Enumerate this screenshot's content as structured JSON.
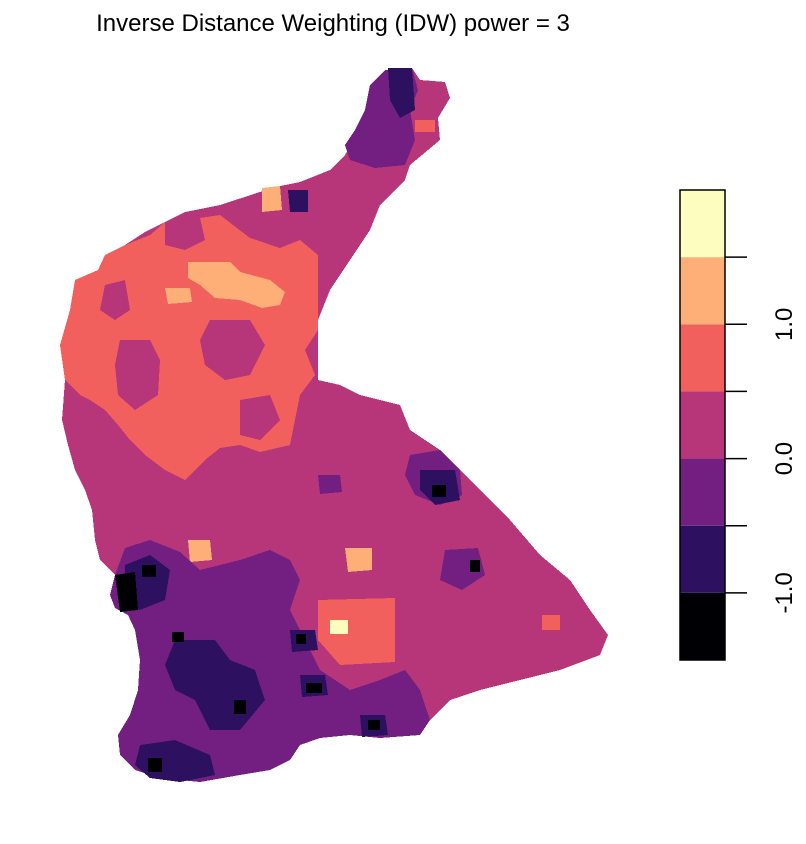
{
  "chart_data": {
    "type": "heatmap",
    "title": "Inverse Distance Weighting (IDW) power = 3",
    "legend": {
      "placement": "right",
      "breaks": [
        -1.5,
        -1.0,
        -0.5,
        0.0,
        0.5,
        1.0,
        1.5,
        2.0
      ],
      "colors": [
        "#000004",
        "#2d1160",
        "#721f81",
        "#b63679",
        "#f1605d",
        "#feaf77",
        "#fcfdbf"
      ],
      "ticks": [
        -1.0,
        -0.5,
        0.0,
        0.5,
        1.0,
        1.5
      ],
      "tick_labels": [
        {
          "value": -1.0,
          "label": "-1.0"
        },
        {
          "value": 0.0,
          "label": "0.0"
        },
        {
          "value": 1.0,
          "label": "1.0"
        }
      ]
    },
    "grid": false
  }
}
